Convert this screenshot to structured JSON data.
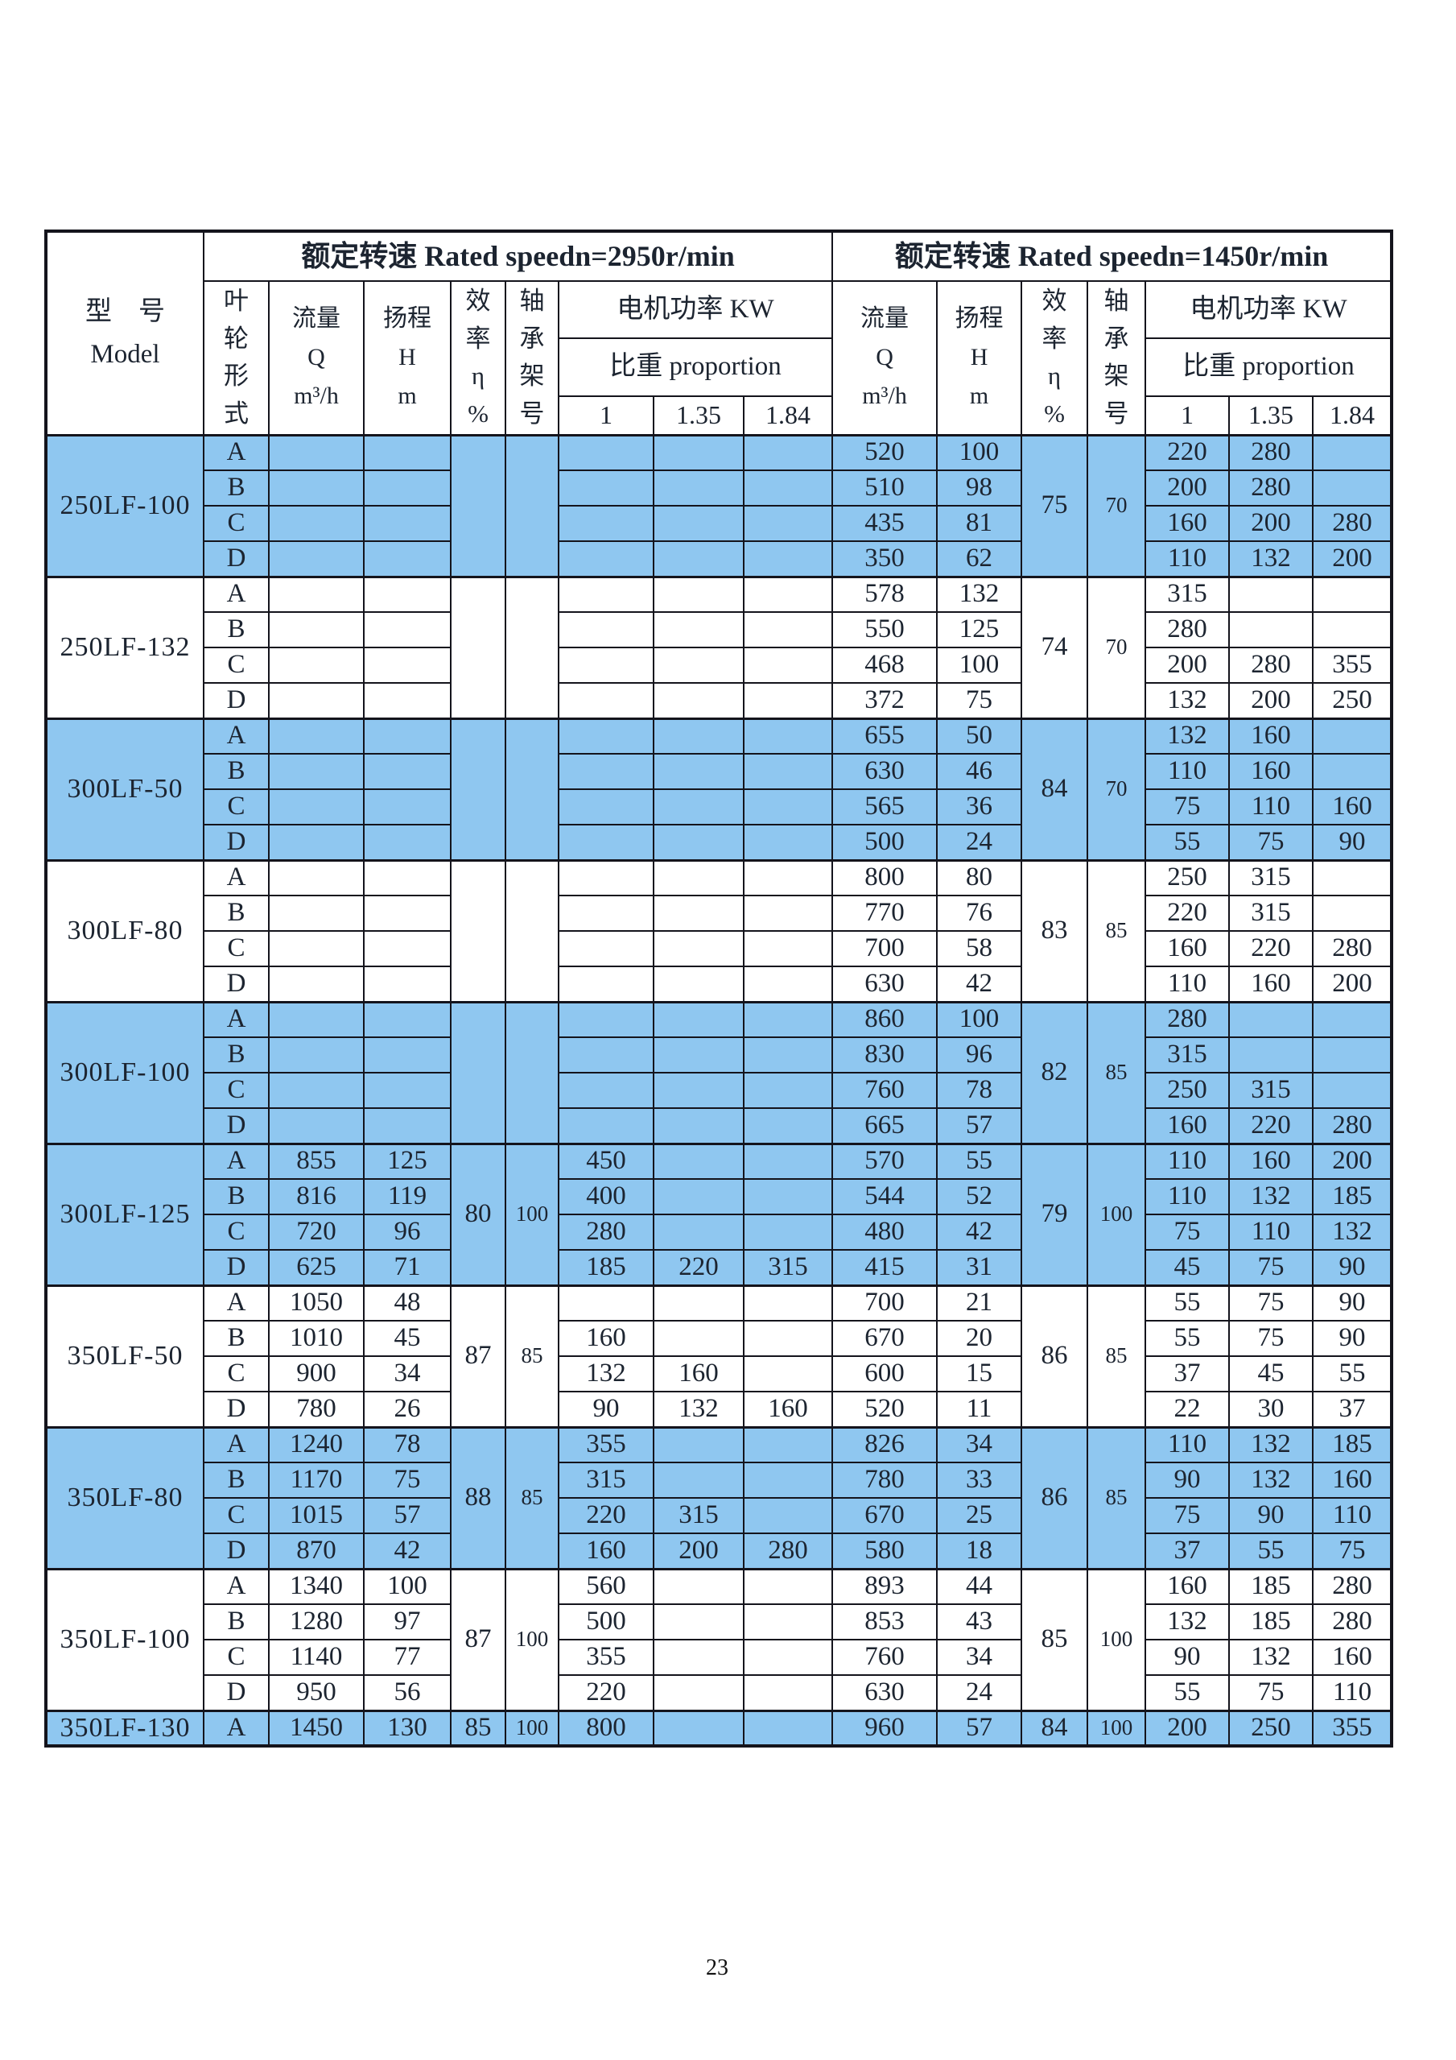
{
  "page": {
    "number": "23"
  },
  "table": {
    "colors": {
      "highlight_row": "#8FC7F0",
      "border": "#14141c",
      "text": "#1c2430"
    },
    "header": {
      "model_label": "型　号\nModel",
      "speed_2950": "额定转速 Rated speedn=2950r/min",
      "speed_1450": "额定转速 Rated speedn=1450r/min",
      "impeller_label": "叶\n轮\n形\n式",
      "flow_label": "流量\nQ\nm³/h",
      "head_label": "扬程\nH\nm",
      "efficiency_label": "效\n率\nη\n%",
      "bearing_label": "轴\n承\n架\n号",
      "motor_power_label": "电机功率 KW",
      "proportion_label": "比重 proportion",
      "proportion_values": [
        "1",
        "1.35",
        "1.84"
      ]
    },
    "sections": [
      {
        "model": "250LF-100",
        "highlighted": true,
        "efficiency_2950": "",
        "bearing_2950": "",
        "efficiency_1450": "75",
        "bearing_1450": "70",
        "rows": [
          {
            "impeller": "A",
            "flow_2950": "",
            "head_2950": "",
            "powers_2950": [
              "",
              "",
              ""
            ],
            "flow_1450": "520",
            "head_1450": "100",
            "powers_1450": [
              "220",
              "280",
              ""
            ]
          },
          {
            "impeller": "B",
            "flow_2950": "",
            "head_2950": "",
            "powers_2950": [
              "",
              "",
              ""
            ],
            "flow_1450": "510",
            "head_1450": "98",
            "powers_1450": [
              "200",
              "280",
              ""
            ]
          },
          {
            "impeller": "C",
            "flow_2950": "",
            "head_2950": "",
            "powers_2950": [
              "",
              "",
              ""
            ],
            "flow_1450": "435",
            "head_1450": "81",
            "powers_1450": [
              "160",
              "200",
              "280"
            ]
          },
          {
            "impeller": "D",
            "flow_2950": "",
            "head_2950": "",
            "powers_2950": [
              "",
              "",
              ""
            ],
            "flow_1450": "350",
            "head_1450": "62",
            "powers_1450": [
              "110",
              "132",
              "200"
            ]
          }
        ]
      },
      {
        "model": "250LF-132",
        "highlighted": false,
        "efficiency_2950": "",
        "bearing_2950": "",
        "efficiency_1450": "74",
        "bearing_1450": "70",
        "rows": [
          {
            "impeller": "A",
            "flow_2950": "",
            "head_2950": "",
            "powers_2950": [
              "",
              "",
              ""
            ],
            "flow_1450": "578",
            "head_1450": "132",
            "powers_1450": [
              "315",
              "",
              ""
            ]
          },
          {
            "impeller": "B",
            "flow_2950": "",
            "head_2950": "",
            "powers_2950": [
              "",
              "",
              ""
            ],
            "flow_1450": "550",
            "head_1450": "125",
            "powers_1450": [
              "280",
              "",
              ""
            ]
          },
          {
            "impeller": "C",
            "flow_2950": "",
            "head_2950": "",
            "powers_2950": [
              "",
              "",
              ""
            ],
            "flow_1450": "468",
            "head_1450": "100",
            "powers_1450": [
              "200",
              "280",
              "355"
            ]
          },
          {
            "impeller": "D",
            "flow_2950": "",
            "head_2950": "",
            "powers_2950": [
              "",
              "",
              ""
            ],
            "flow_1450": "372",
            "head_1450": "75",
            "powers_1450": [
              "132",
              "200",
              "250"
            ]
          }
        ]
      },
      {
        "model": "300LF-50",
        "highlighted": true,
        "efficiency_2950": "",
        "bearing_2950": "",
        "efficiency_1450": "84",
        "bearing_1450": "70",
        "rows": [
          {
            "impeller": "A",
            "flow_2950": "",
            "head_2950": "",
            "powers_2950": [
              "",
              "",
              ""
            ],
            "flow_1450": "655",
            "head_1450": "50",
            "powers_1450": [
              "132",
              "160",
              ""
            ]
          },
          {
            "impeller": "B",
            "flow_2950": "",
            "head_2950": "",
            "powers_2950": [
              "",
              "",
              ""
            ],
            "flow_1450": "630",
            "head_1450": "46",
            "powers_1450": [
              "110",
              "160",
              ""
            ]
          },
          {
            "impeller": "C",
            "flow_2950": "",
            "head_2950": "",
            "powers_2950": [
              "",
              "",
              ""
            ],
            "flow_1450": "565",
            "head_1450": "36",
            "powers_1450": [
              "75",
              "110",
              "160"
            ]
          },
          {
            "impeller": "D",
            "flow_2950": "",
            "head_2950": "",
            "powers_2950": [
              "",
              "",
              ""
            ],
            "flow_1450": "500",
            "head_1450": "24",
            "powers_1450": [
              "55",
              "75",
              "90"
            ]
          }
        ]
      },
      {
        "model": "300LF-80",
        "highlighted": false,
        "efficiency_2950": "",
        "bearing_2950": "",
        "efficiency_1450": "83",
        "bearing_1450": "85",
        "rows": [
          {
            "impeller": "A",
            "flow_2950": "",
            "head_2950": "",
            "powers_2950": [
              "",
              "",
              ""
            ],
            "flow_1450": "800",
            "head_1450": "80",
            "powers_1450": [
              "250",
              "315",
              ""
            ]
          },
          {
            "impeller": "B",
            "flow_2950": "",
            "head_2950": "",
            "powers_2950": [
              "",
              "",
              ""
            ],
            "flow_1450": "770",
            "head_1450": "76",
            "powers_1450": [
              "220",
              "315",
              ""
            ]
          },
          {
            "impeller": "C",
            "flow_2950": "",
            "head_2950": "",
            "powers_2950": [
              "",
              "",
              ""
            ],
            "flow_1450": "700",
            "head_1450": "58",
            "powers_1450": [
              "160",
              "220",
              "280"
            ]
          },
          {
            "impeller": "D",
            "flow_2950": "",
            "head_2950": "",
            "powers_2950": [
              "",
              "",
              ""
            ],
            "flow_1450": "630",
            "head_1450": "42",
            "powers_1450": [
              "110",
              "160",
              "200"
            ]
          }
        ]
      },
      {
        "model": "300LF-100",
        "highlighted": true,
        "efficiency_2950": "",
        "bearing_2950": "",
        "efficiency_1450": "82",
        "bearing_1450": "85",
        "rows": [
          {
            "impeller": "A",
            "flow_2950": "",
            "head_2950": "",
            "powers_2950": [
              "",
              "",
              ""
            ],
            "flow_1450": "860",
            "head_1450": "100",
            "powers_1450": [
              "280",
              "",
              ""
            ]
          },
          {
            "impeller": "B",
            "flow_2950": "",
            "head_2950": "",
            "powers_2950": [
              "",
              "",
              ""
            ],
            "flow_1450": "830",
            "head_1450": "96",
            "powers_1450": [
              "315",
              "",
              ""
            ]
          },
          {
            "impeller": "C",
            "flow_2950": "",
            "head_2950": "",
            "powers_2950": [
              "",
              "",
              ""
            ],
            "flow_1450": "760",
            "head_1450": "78",
            "powers_1450": [
              "250",
              "315",
              ""
            ]
          },
          {
            "impeller": "D",
            "flow_2950": "",
            "head_2950": "",
            "powers_2950": [
              "",
              "",
              ""
            ],
            "flow_1450": "665",
            "head_1450": "57",
            "powers_1450": [
              "160",
              "220",
              "280"
            ]
          }
        ]
      },
      {
        "model": "300LF-125",
        "highlighted": true,
        "efficiency_2950": "80",
        "bearing_2950": "100",
        "efficiency_1450": "79",
        "bearing_1450": "100",
        "rows": [
          {
            "impeller": "A",
            "flow_2950": "855",
            "head_2950": "125",
            "powers_2950": [
              "450",
              "",
              ""
            ],
            "flow_1450": "570",
            "head_1450": "55",
            "powers_1450": [
              "110",
              "160",
              "200"
            ]
          },
          {
            "impeller": "B",
            "flow_2950": "816",
            "head_2950": "119",
            "powers_2950": [
              "400",
              "",
              ""
            ],
            "flow_1450": "544",
            "head_1450": "52",
            "powers_1450": [
              "110",
              "132",
              "185"
            ]
          },
          {
            "impeller": "C",
            "flow_2950": "720",
            "head_2950": "96",
            "powers_2950": [
              "280",
              "",
              ""
            ],
            "flow_1450": "480",
            "head_1450": "42",
            "powers_1450": [
              "75",
              "110",
              "132"
            ]
          },
          {
            "impeller": "D",
            "flow_2950": "625",
            "head_2950": "71",
            "powers_2950": [
              "185",
              "220",
              "315"
            ],
            "flow_1450": "415",
            "head_1450": "31",
            "powers_1450": [
              "45",
              "75",
              "90"
            ]
          }
        ]
      },
      {
        "model": "350LF-50",
        "highlighted": false,
        "efficiency_2950": "87",
        "bearing_2950": "85",
        "efficiency_1450": "86",
        "bearing_1450": "85",
        "rows": [
          {
            "impeller": "A",
            "flow_2950": "1050",
            "head_2950": "48",
            "powers_2950": [
              "",
              "",
              ""
            ],
            "flow_1450": "700",
            "head_1450": "21",
            "powers_1450": [
              "55",
              "75",
              "90"
            ]
          },
          {
            "impeller": "B",
            "flow_2950": "1010",
            "head_2950": "45",
            "powers_2950": [
              "160",
              "",
              ""
            ],
            "flow_1450": "670",
            "head_1450": "20",
            "powers_1450": [
              "55",
              "75",
              "90"
            ]
          },
          {
            "impeller": "C",
            "flow_2950": "900",
            "head_2950": "34",
            "powers_2950": [
              "132",
              "160",
              ""
            ],
            "flow_1450": "600",
            "head_1450": "15",
            "powers_1450": [
              "37",
              "45",
              "55"
            ]
          },
          {
            "impeller": "D",
            "flow_2950": "780",
            "head_2950": "26",
            "powers_2950": [
              "90",
              "132",
              "160"
            ],
            "flow_1450": "520",
            "head_1450": "11",
            "powers_1450": [
              "22",
              "30",
              "37"
            ]
          }
        ]
      },
      {
        "model": "350LF-80",
        "highlighted": true,
        "efficiency_2950": "88",
        "bearing_2950": "85",
        "efficiency_1450": "86",
        "bearing_1450": "85",
        "rows": [
          {
            "impeller": "A",
            "flow_2950": "1240",
            "head_2950": "78",
            "powers_2950": [
              "355",
              "",
              ""
            ],
            "flow_1450": "826",
            "head_1450": "34",
            "powers_1450": [
              "110",
              "132",
              "185"
            ]
          },
          {
            "impeller": "B",
            "flow_2950": "1170",
            "head_2950": "75",
            "powers_2950": [
              "315",
              "",
              ""
            ],
            "flow_1450": "780",
            "head_1450": "33",
            "powers_1450": [
              "90",
              "132",
              "160"
            ]
          },
          {
            "impeller": "C",
            "flow_2950": "1015",
            "head_2950": "57",
            "powers_2950": [
              "220",
              "315",
              ""
            ],
            "flow_1450": "670",
            "head_1450": "25",
            "powers_1450": [
              "75",
              "90",
              "110"
            ]
          },
          {
            "impeller": "D",
            "flow_2950": "870",
            "head_2950": "42",
            "powers_2950": [
              "160",
              "200",
              "280"
            ],
            "flow_1450": "580",
            "head_1450": "18",
            "powers_1450": [
              "37",
              "55",
              "75"
            ]
          }
        ]
      },
      {
        "model": "350LF-100",
        "highlighted": false,
        "efficiency_2950": "87",
        "bearing_2950": "100",
        "efficiency_1450": "85",
        "bearing_1450": "100",
        "rows": [
          {
            "impeller": "A",
            "flow_2950": "1340",
            "head_2950": "100",
            "powers_2950": [
              "560",
              "",
              ""
            ],
            "flow_1450": "893",
            "head_1450": "44",
            "powers_1450": [
              "160",
              "185",
              "280"
            ]
          },
          {
            "impeller": "B",
            "flow_2950": "1280",
            "head_2950": "97",
            "powers_2950": [
              "500",
              "",
              ""
            ],
            "flow_1450": "853",
            "head_1450": "43",
            "powers_1450": [
              "132",
              "185",
              "280"
            ]
          },
          {
            "impeller": "C",
            "flow_2950": "1140",
            "head_2950": "77",
            "powers_2950": [
              "355",
              "",
              ""
            ],
            "flow_1450": "760",
            "head_1450": "34",
            "powers_1450": [
              "90",
              "132",
              "160"
            ]
          },
          {
            "impeller": "D",
            "flow_2950": "950",
            "head_2950": "56",
            "powers_2950": [
              "220",
              "",
              ""
            ],
            "flow_1450": "630",
            "head_1450": "24",
            "powers_1450": [
              "55",
              "75",
              "110"
            ]
          }
        ]
      },
      {
        "model": "350LF-130",
        "highlighted": true,
        "efficiency_2950": "85",
        "bearing_2950": "100",
        "efficiency_1450": "84",
        "bearing_1450": "100",
        "rows": [
          {
            "impeller": "A",
            "flow_2950": "1450",
            "head_2950": "130",
            "powers_2950": [
              "800",
              "",
              ""
            ],
            "flow_1450": "960",
            "head_1450": "57",
            "powers_1450": [
              "200",
              "250",
              "355"
            ]
          }
        ]
      }
    ]
  }
}
